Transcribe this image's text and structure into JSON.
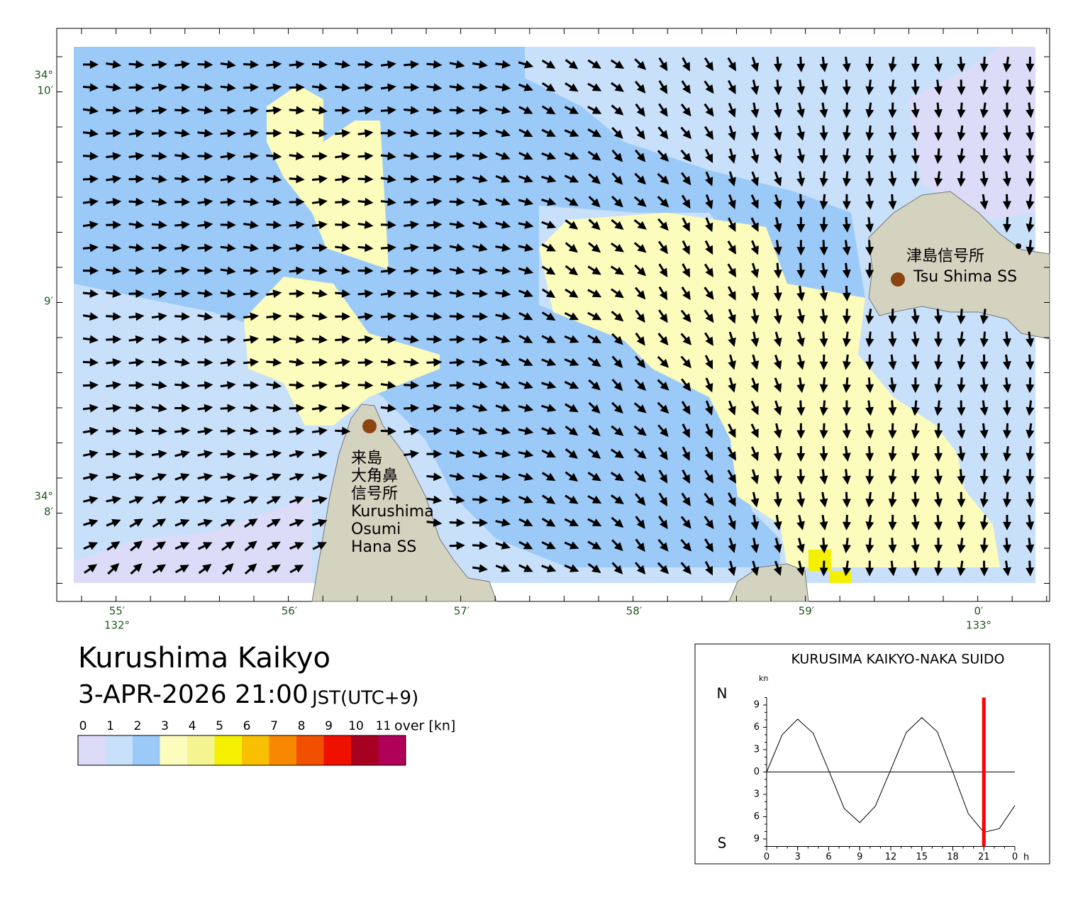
{
  "map": {
    "lat_labels": [
      {
        "deg": "34°",
        "min": "10′"
      },
      {
        "min": "9′"
      },
      {
        "deg": "34°",
        "min": "8′"
      }
    ],
    "lon_labels": [
      {
        "min": "55′",
        "deg": "132°"
      },
      {
        "min": "56′"
      },
      {
        "min": "57′"
      },
      {
        "min": "58′"
      },
      {
        "min": "59′"
      },
      {
        "min": "0′",
        "deg": "133°"
      }
    ],
    "stations": [
      {
        "lines": [
          "津島信号所",
          "Tsu Shima SS"
        ]
      },
      {
        "lines": [
          "来島",
          "大角鼻",
          "信号所",
          "Kurushima",
          "Osumi",
          "Hana SS"
        ]
      }
    ]
  },
  "header": {
    "title": "Kurushima Kaikyo",
    "datetime": "3-APR-2026 21:00",
    "timezone": "JST(UTC+9)"
  },
  "legend": {
    "labels": [
      "0",
      "1",
      "2",
      "3",
      "4",
      "5",
      "6",
      "7",
      "8",
      "9",
      "10",
      "11"
    ],
    "unit": "over [kn]",
    "colors": [
      "#dcdcf8",
      "#c8e0fa",
      "#9ccaf8",
      "#fcfcbc",
      "#f4f490",
      "#f4f000",
      "#f8c000",
      "#f88800",
      "#f05000",
      "#f01000",
      "#a80020",
      "#b00058"
    ]
  },
  "chart_data": {
    "type": "line",
    "title": "KURUSIMA KAIKYO-NAKA SUIDO",
    "y_unit": "kn",
    "north_label": "N",
    "south_label": "S",
    "x_unit": "h",
    "x": [
      0,
      1.5,
      3,
      4.5,
      6,
      7.5,
      9,
      10.5,
      12,
      13.5,
      15,
      16.5,
      18,
      19.5,
      21,
      22.5,
      24
    ],
    "series": [
      {
        "color": "#000000",
        "values": [
          0,
          5.0,
          7.1,
          5.2,
          0.2,
          -4.9,
          -6.8,
          -4.6,
          0.3,
          5.3,
          7.3,
          5.4,
          0,
          -5.6,
          -8.1,
          -7.6,
          -4.5
        ]
      }
    ],
    "current_time": 21,
    "current_color": "#ff0000",
    "xlim": [
      0,
      24
    ],
    "xticks": [
      0,
      3,
      6,
      9,
      12,
      15,
      18,
      21,
      {
        "value": 24,
        "label": "0"
      }
    ],
    "ylim": [
      -10,
      10
    ],
    "yticks": [
      9,
      6,
      3,
      0,
      {
        "value": -3,
        "label": "3"
      },
      {
        "value": -6,
        "label": "6"
      },
      {
        "value": -9,
        "label": "9"
      }
    ]
  }
}
